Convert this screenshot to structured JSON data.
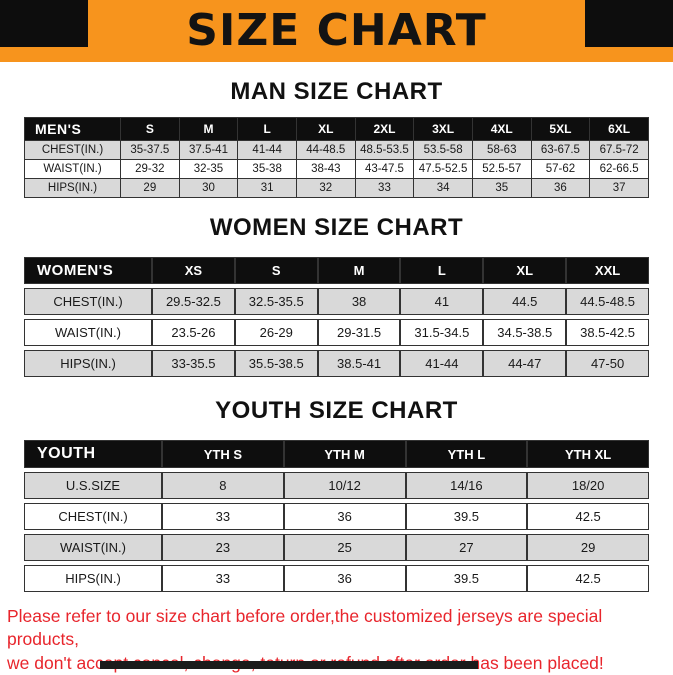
{
  "banner": {
    "title": "SIZE CHART",
    "bg_color": "#F7941D",
    "corner_color": "#0D0D0D",
    "text_color": "#131313"
  },
  "sections": [
    {
      "id": "men",
      "heading": "MAN SIZE CHART",
      "table": {
        "header": [
          "MEN'S",
          "S",
          "M",
          "L",
          "XL",
          "2XL",
          "3XL",
          "4XL",
          "5XL",
          "6XL"
        ],
        "rows": [
          [
            "CHEST(IN.)",
            "35-37.5",
            "37.5-41",
            "41-44",
            "44-48.5",
            "48.5-53.5",
            "53.5-58",
            "58-63",
            "63-67.5",
            "67.5-72"
          ],
          [
            "WAIST(IN.)",
            "29-32",
            "32-35",
            "35-38",
            "38-43",
            "43-47.5",
            "47.5-52.5",
            "52.5-57",
            "57-62",
            "62-66.5"
          ],
          [
            "HIPS(IN.)",
            "29",
            "30",
            "31",
            "32",
            "33",
            "34",
            "35",
            "36",
            "37"
          ]
        ]
      }
    },
    {
      "id": "women",
      "heading": "WOMEN SIZE CHART",
      "table": {
        "header": [
          "WOMEN'S",
          "XS",
          "S",
          "M",
          "L",
          "XL",
          "XXL"
        ],
        "rows": [
          [
            "CHEST(IN.)",
            "29.5-32.5",
            "32.5-35.5",
            "38",
            "41",
            "44.5",
            "44.5-48.5"
          ],
          [
            "WAIST(IN.)",
            "23.5-26",
            "26-29",
            "29-31.5",
            "31.5-34.5",
            "34.5-38.5",
            "38.5-42.5"
          ],
          [
            "HIPS(IN.)",
            "33-35.5",
            "35.5-38.5",
            "38.5-41",
            "41-44",
            "44-47",
            "47-50"
          ]
        ]
      }
    },
    {
      "id": "youth",
      "heading": "YOUTH SIZE CHART",
      "table": {
        "header": [
          "YOUTH",
          "YTH S",
          "YTH M",
          "YTH L",
          "YTH XL"
        ],
        "rows": [
          [
            "U.S.SIZE",
            "8",
            "10/12",
            "14/16",
            "18/20"
          ],
          [
            "CHEST(IN.)",
            "33",
            "36",
            "39.5",
            "42.5"
          ],
          [
            "WAIST(IN.)",
            "23",
            "25",
            "27",
            "29"
          ],
          [
            "HIPS(IN.)",
            "33",
            "36",
            "39.5",
            "42.5"
          ]
        ]
      }
    }
  ],
  "footer": {
    "line1": "Please refer to our size chart before order,the customized jerseys are special products,",
    "line2": "we don't accept cancel, change, teturn or refund after order has been placed!",
    "text_color": "#E8252C"
  },
  "theme": {
    "table_header_bg": "#0E0E0E",
    "table_header_text": "#FFFFFF",
    "row_shaded": "#D9D9D9",
    "row_plain": "#FFFFFF",
    "border": "#333333"
  }
}
